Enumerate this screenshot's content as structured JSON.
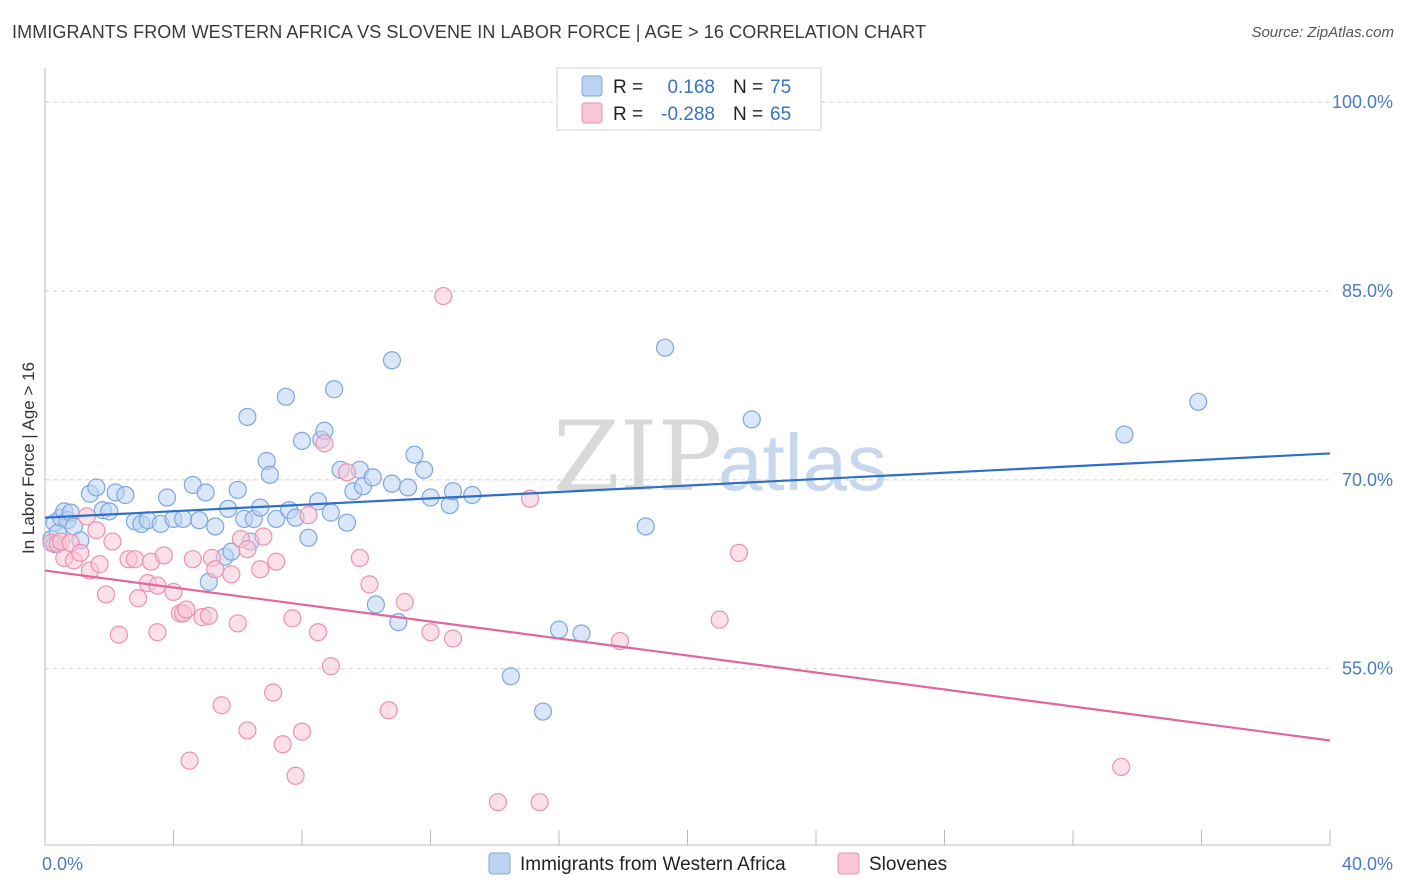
{
  "title": "IMMIGRANTS FROM WESTERN AFRICA VS SLOVENE IN LABOR FORCE | AGE > 16 CORRELATION CHART",
  "source": "Source: ZipAtlas.com",
  "watermark": {
    "zip": "ZIP",
    "atlas": "atlas"
  },
  "colors": {
    "blue_fill": "#bcd3f2",
    "blue_stroke": "#7fa6de",
    "blue_line": "#2f6fc8",
    "pink_fill": "#f8c7d6",
    "pink_stroke": "#ec92ae",
    "pink_line": "#e0679a",
    "grid": "#cfcfcf",
    "tick_text": "#4a7cc4"
  },
  "legend": {
    "rows": [
      {
        "r_label": "R =",
        "r_value": "0.168",
        "n_label": "N =",
        "n_value": "75"
      },
      {
        "r_label": "R =",
        "r_value": "-0.288",
        "n_label": "N =",
        "n_value": "65"
      }
    ]
  },
  "chart_data": {
    "type": "scatter",
    "title": "IMMIGRANTS FROM WESTERN AFRICA VS SLOVENE IN LABOR FORCE | AGE > 16 CORRELATION CHART",
    "xlabel": "",
    "ylabel": "In Labor Force | Age > 16",
    "xlim": [
      0,
      40
    ],
    "ylim": [
      41,
      102
    ],
    "x_tick_labels": [
      {
        "value": 0,
        "label": "0.0%"
      },
      {
        "value": 40,
        "label": "40.0%"
      }
    ],
    "y_tick_labels": [
      {
        "value": 55,
        "label": "55.0%"
      },
      {
        "value": 70,
        "label": "70.0%"
      },
      {
        "value": 85,
        "label": "85.0%"
      },
      {
        "value": 100,
        "label": "100.0%"
      }
    ],
    "grid": "horizontal-dashed",
    "legend_position": "top-center",
    "series": [
      {
        "name": "Immigrants from Western Africa",
        "color": "#7fa6de",
        "trend": {
          "x": [
            0,
            40
          ],
          "y": [
            67.0,
            72.1
          ]
        },
        "points": [
          [
            0.2,
            65.3
          ],
          [
            0.3,
            66.6
          ],
          [
            0.3,
            64.9
          ],
          [
            0.4,
            65.8
          ],
          [
            0.5,
            67.0
          ],
          [
            0.6,
            67.5
          ],
          [
            0.7,
            66.8
          ],
          [
            0.8,
            67.4
          ],
          [
            0.9,
            66.3
          ],
          [
            1.1,
            65.2
          ],
          [
            1.4,
            68.9
          ],
          [
            1.6,
            69.4
          ],
          [
            1.8,
            67.6
          ],
          [
            2.0,
            67.5
          ],
          [
            2.2,
            69.0
          ],
          [
            2.5,
            68.8
          ],
          [
            2.8,
            66.7
          ],
          [
            3.0,
            66.5
          ],
          [
            3.2,
            66.8
          ],
          [
            3.6,
            66.5
          ],
          [
            3.8,
            68.6
          ],
          [
            4.0,
            66.9
          ],
          [
            4.3,
            66.9
          ],
          [
            4.6,
            69.6
          ],
          [
            4.8,
            66.8
          ],
          [
            5.0,
            69.0
          ],
          [
            5.3,
            66.3
          ],
          [
            5.1,
            61.9
          ],
          [
            5.6,
            63.9
          ],
          [
            5.7,
            67.7
          ],
          [
            5.8,
            64.3
          ],
          [
            6.0,
            69.2
          ],
          [
            6.2,
            66.9
          ],
          [
            6.3,
            75.0
          ],
          [
            6.4,
            65.1
          ],
          [
            6.5,
            66.9
          ],
          [
            6.7,
            67.8
          ],
          [
            6.9,
            71.5
          ],
          [
            7.0,
            70.4
          ],
          [
            7.2,
            66.9
          ],
          [
            7.5,
            76.6
          ],
          [
            7.6,
            67.6
          ],
          [
            7.8,
            67.0
          ],
          [
            8.0,
            73.1
          ],
          [
            8.2,
            65.4
          ],
          [
            8.5,
            68.3
          ],
          [
            8.6,
            73.2
          ],
          [
            8.7,
            73.9
          ],
          [
            8.9,
            67.4
          ],
          [
            9.0,
            77.2
          ],
          [
            9.2,
            70.8
          ],
          [
            9.4,
            66.6
          ],
          [
            9.6,
            69.1
          ],
          [
            9.8,
            70.8
          ],
          [
            9.9,
            69.5
          ],
          [
            10.2,
            70.2
          ],
          [
            10.3,
            60.1
          ],
          [
            10.8,
            79.5
          ],
          [
            10.8,
            69.7
          ],
          [
            11.0,
            58.7
          ],
          [
            11.3,
            69.4
          ],
          [
            11.5,
            72.0
          ],
          [
            11.8,
            70.8
          ],
          [
            12.0,
            68.6
          ],
          [
            12.6,
            68.0
          ],
          [
            12.7,
            69.1
          ],
          [
            13.3,
            68.8
          ],
          [
            14.5,
            54.4
          ],
          [
            15.5,
            51.6
          ],
          [
            16.0,
            58.1
          ],
          [
            16.7,
            57.8
          ],
          [
            18.7,
            66.3
          ],
          [
            19.3,
            80.5
          ],
          [
            22.0,
            74.8
          ],
          [
            33.6,
            73.6
          ],
          [
            35.9,
            76.2
          ]
        ]
      },
      {
        "name": "Slovenes",
        "color": "#ec92ae",
        "trend": {
          "x": [
            0,
            40
          ],
          "y": [
            62.8,
            49.3
          ]
        },
        "points": [
          [
            0.2,
            65.0
          ],
          [
            0.4,
            64.9
          ],
          [
            0.5,
            65.1
          ],
          [
            0.6,
            63.8
          ],
          [
            0.8,
            65.0
          ],
          [
            0.9,
            63.6
          ],
          [
            1.1,
            64.2
          ],
          [
            1.3,
            67.1
          ],
          [
            1.4,
            62.8
          ],
          [
            1.6,
            66.0
          ],
          [
            1.7,
            63.3
          ],
          [
            1.9,
            60.9
          ],
          [
            2.1,
            65.1
          ],
          [
            2.3,
            57.7
          ],
          [
            2.6,
            63.7
          ],
          [
            2.8,
            63.7
          ],
          [
            2.9,
            60.6
          ],
          [
            3.2,
            61.8
          ],
          [
            3.3,
            63.5
          ],
          [
            3.5,
            57.9
          ],
          [
            3.5,
            61.6
          ],
          [
            3.7,
            64.0
          ],
          [
            4.0,
            61.1
          ],
          [
            4.2,
            59.4
          ],
          [
            4.3,
            59.4
          ],
          [
            4.5,
            47.7
          ],
          [
            4.4,
            59.7
          ],
          [
            4.6,
            63.7
          ],
          [
            4.9,
            59.1
          ],
          [
            5.1,
            59.2
          ],
          [
            5.2,
            63.8
          ],
          [
            5.3,
            62.9
          ],
          [
            5.5,
            52.1
          ],
          [
            5.8,
            62.5
          ],
          [
            6.0,
            58.6
          ],
          [
            6.1,
            65.3
          ],
          [
            6.3,
            64.5
          ],
          [
            6.3,
            50.1
          ],
          [
            6.7,
            62.9
          ],
          [
            6.8,
            65.5
          ],
          [
            7.1,
            53.1
          ],
          [
            7.2,
            63.5
          ],
          [
            7.4,
            49.0
          ],
          [
            7.7,
            59.0
          ],
          [
            7.8,
            46.5
          ],
          [
            8.0,
            50.0
          ],
          [
            8.2,
            67.2
          ],
          [
            8.5,
            57.9
          ],
          [
            8.7,
            72.9
          ],
          [
            8.9,
            55.2
          ],
          [
            9.4,
            70.6
          ],
          [
            9.8,
            63.8
          ],
          [
            10.1,
            61.7
          ],
          [
            10.7,
            51.7
          ],
          [
            11.2,
            60.3
          ],
          [
            12.0,
            57.9
          ],
          [
            12.4,
            84.6
          ],
          [
            12.7,
            57.4
          ],
          [
            14.1,
            44.4
          ],
          [
            15.1,
            68.5
          ],
          [
            15.4,
            44.4
          ],
          [
            17.9,
            57.2
          ],
          [
            21.0,
            58.9
          ],
          [
            21.6,
            64.2
          ],
          [
            33.5,
            47.2
          ]
        ]
      }
    ]
  }
}
